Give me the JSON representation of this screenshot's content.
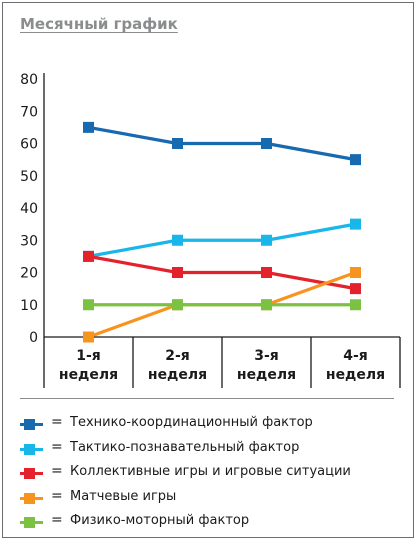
{
  "title": "Месячный график",
  "chart_data": {
    "type": "line",
    "title": "Месячный график",
    "categories": [
      "1-я неделя",
      "2-я неделя",
      "3-я неделя",
      "4-я неделя"
    ],
    "category_lines": [
      [
        "1-я",
        "неделя"
      ],
      [
        "2-я",
        "неделя"
      ],
      [
        "3-я",
        "неделя"
      ],
      [
        "4-я",
        "неделя"
      ]
    ],
    "yticks": [
      "0",
      "10",
      "20",
      "30",
      "40",
      "50",
      "60",
      "70",
      "80"
    ],
    "ylim": [
      0,
      80
    ],
    "grid": false,
    "legend_position": "bottom",
    "series": [
      {
        "name": "Технико-координационный фактор",
        "color": "#1769b0",
        "values": [
          65,
          60,
          60,
          55
        ]
      },
      {
        "name": "Тактико-познавательный фактор",
        "color": "#19b6ea",
        "values": [
          25,
          30,
          30,
          35
        ]
      },
      {
        "name": "Коллективные игры и игровые ситуации",
        "color": "#e3222c",
        "values": [
          25,
          20,
          20,
          15
        ]
      },
      {
        "name": "Матчевые игры",
        "color": "#f7941e",
        "values": [
          0,
          10,
          10,
          20
        ]
      },
      {
        "name": "Физико-моторный фактор",
        "color": "#7cc242",
        "values": [
          10,
          10,
          10,
          10
        ]
      }
    ],
    "legend_equals": "="
  }
}
